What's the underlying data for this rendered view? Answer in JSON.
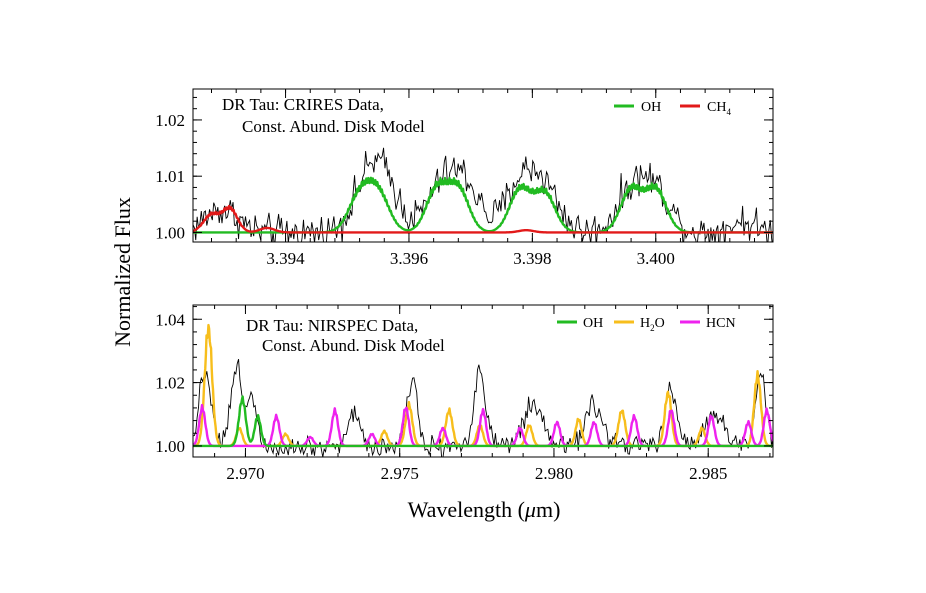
{
  "figure": {
    "ylabel": "Normalized Flux",
    "xlabel_main": "Wavelength (",
    "xlabel_mu": "μ",
    "xlabel_unit": "m)"
  },
  "chart_data": [
    {
      "type": "line",
      "title_line1": "DR Tau: CRIRES Data,",
      "title_line2": "Const. Abund. Disk Model",
      "xlim": [
        3.3925,
        3.4019
      ],
      "ylim": [
        0.9983,
        1.0255
      ],
      "xticks": [
        3.394,
        3.396,
        3.398,
        3.4
      ],
      "xtick_labels": [
        "3.394",
        "3.396",
        "3.398",
        "3.400"
      ],
      "yticks": [
        1.0,
        1.01,
        1.02
      ],
      "ytick_labels": [
        "1.00",
        "1.01",
        "1.02"
      ],
      "legend": [
        {
          "label": "OH",
          "sub": "",
          "color": "#22bb22"
        },
        {
          "label": "CH",
          "sub": "4",
          "color": "#e21a1a"
        }
      ],
      "data_series": {
        "name": "",
        "color": "#000000",
        "x_start": 3.3925,
        "x_end": 3.4019,
        "noise": 0.0022,
        "features": [
          {
            "center": 3.3928,
            "amp": 0.0025,
            "width": 0.0002
          },
          {
            "center": 3.3931,
            "amp": 0.0028,
            "width": 0.0002
          },
          {
            "center": 3.3953,
            "amp": 0.007,
            "width": 0.00024
          },
          {
            "center": 3.3956,
            "amp": 0.0085,
            "width": 0.00024
          },
          {
            "center": 3.3965,
            "amp": 0.0072,
            "width": 0.00024
          },
          {
            "center": 3.3969,
            "amp": 0.0085,
            "width": 0.00024
          },
          {
            "center": 3.3978,
            "amp": 0.0085,
            "width": 0.00024
          },
          {
            "center": 3.3982,
            "amp": 0.0075,
            "width": 0.00024
          },
          {
            "center": 3.3996,
            "amp": 0.007,
            "width": 0.00024
          },
          {
            "center": 3.4,
            "amp": 0.0072,
            "width": 0.00024
          },
          {
            "center": 3.4014,
            "amp": 0.002,
            "width": 0.0002
          }
        ]
      },
      "model_series": [
        {
          "name": "OH",
          "color": "#22bb22",
          "baseline": 1.0,
          "features": [
            {
              "center": 3.3952,
              "amp": 0.0068,
              "width": 0.00018
            },
            {
              "center": 3.3955,
              "amp": 0.0073,
              "width": 0.00018
            },
            {
              "center": 3.39645,
              "amp": 0.0082,
              "width": 0.00017
            },
            {
              "center": 3.3968,
              "amp": 0.0083,
              "width": 0.00017
            },
            {
              "center": 3.3978,
              "amp": 0.0082,
              "width": 0.00017
            },
            {
              "center": 3.3982,
              "amp": 0.0075,
              "width": 0.00017
            },
            {
              "center": 3.3996,
              "amp": 0.0082,
              "width": 0.00017
            },
            {
              "center": 3.4,
              "amp": 0.0082,
              "width": 0.00017
            }
          ]
        },
        {
          "name": "CH4",
          "color": "#e21a1a",
          "baseline": 1.0,
          "features": [
            {
              "center": 3.3928,
              "amp": 0.0034,
              "width": 0.00013
            },
            {
              "center": 3.3931,
              "amp": 0.0045,
              "width": 0.00012
            },
            {
              "center": 3.3937,
              "amp": 0.0008,
              "width": 0.00012
            },
            {
              "center": 3.3979,
              "amp": 0.0004,
              "width": 0.00012
            }
          ]
        }
      ]
    },
    {
      "type": "line",
      "title_line1": "DR Tau: NIRSPEC Data,",
      "title_line2": "Const. Abund. Disk Model",
      "xlim": [
        2.9683,
        2.9871
      ],
      "ylim": [
        0.9965,
        1.0445
      ],
      "xticks": [
        2.97,
        2.975,
        2.98,
        2.985
      ],
      "xtick_labels": [
        "2.970",
        "2.975",
        "2.980",
        "2.985"
      ],
      "yticks": [
        1.0,
        1.02,
        1.04
      ],
      "ytick_labels": [
        "1.00",
        "1.02",
        "1.04"
      ],
      "legend": [
        {
          "label": "OH",
          "sub": "",
          "color": "#22bb22"
        },
        {
          "label": "H",
          "sub": "2",
          "suffix": "O",
          "color": "#f7be1c"
        },
        {
          "label": "HCN",
          "sub": "",
          "color": "#ee22ee"
        }
      ],
      "data_series": {
        "name": "",
        "color": "#000000",
        "x_start": 2.9683,
        "x_end": 2.9871,
        "noise": 0.0025,
        "features": [
          {
            "center": 2.9687,
            "amp": 0.024,
            "width": 0.0002
          },
          {
            "center": 2.9697,
            "amp": 0.024,
            "width": 0.00018
          },
          {
            "center": 2.9702,
            "amp": 0.015,
            "width": 0.00018
          },
          {
            "center": 2.9735,
            "amp": 0.01,
            "width": 0.0002
          },
          {
            "center": 2.9754,
            "amp": 0.021,
            "width": 0.00018
          },
          {
            "center": 2.9776,
            "amp": 0.024,
            "width": 0.00018
          },
          {
            "center": 2.9793,
            "amp": 0.012,
            "width": 0.0003
          },
          {
            "center": 2.9813,
            "amp": 0.012,
            "width": 0.0003
          },
          {
            "center": 2.9838,
            "amp": 0.017,
            "width": 0.0002
          },
          {
            "center": 2.9852,
            "amp": 0.01,
            "width": 0.0003
          },
          {
            "center": 2.9867,
            "amp": 0.022,
            "width": 0.00018
          }
        ]
      },
      "model_series": [
        {
          "name": "H2O",
          "color": "#f7be1c",
          "baseline": 1.0,
          "features": [
            {
              "center": 2.9688,
              "amp": 0.04,
              "width": 0.00012
            },
            {
              "center": 2.9698,
              "amp": 0.006,
              "width": 0.0001
            },
            {
              "center": 2.9713,
              "amp": 0.004,
              "width": 0.0001
            },
            {
              "center": 2.9745,
              "amp": 0.005,
              "width": 0.0001
            },
            {
              "center": 2.9753,
              "amp": 0.014,
              "width": 0.00011
            },
            {
              "center": 2.9766,
              "amp": 0.012,
              "width": 0.00011
            },
            {
              "center": 2.9776,
              "amp": 0.007,
              "width": 0.0001
            },
            {
              "center": 2.9792,
              "amp": 0.007,
              "width": 0.0001
            },
            {
              "center": 2.9808,
              "amp": 0.009,
              "width": 0.0001
            },
            {
              "center": 2.9822,
              "amp": 0.012,
              "width": 0.00011
            },
            {
              "center": 2.9837,
              "amp": 0.018,
              "width": 0.00011
            },
            {
              "center": 2.9848,
              "amp": 0.006,
              "width": 0.0001
            },
            {
              "center": 2.9866,
              "amp": 0.024,
              "width": 0.00011
            }
          ]
        },
        {
          "name": "HCN",
          "color": "#ee22ee",
          "baseline": 1.0,
          "features": [
            {
              "center": 2.9686,
              "amp": 0.013,
              "width": 0.0001
            },
            {
              "center": 2.971,
              "amp": 0.01,
              "width": 0.0001
            },
            {
              "center": 2.9721,
              "amp": 0.003,
              "width": 0.0001
            },
            {
              "center": 2.9729,
              "amp": 0.012,
              "width": 0.0001
            },
            {
              "center": 2.9741,
              "amp": 0.004,
              "width": 0.0001
            },
            {
              "center": 2.9752,
              "amp": 0.013,
              "width": 0.0001
            },
            {
              "center": 2.9764,
              "amp": 0.006,
              "width": 0.0001
            },
            {
              "center": 2.9777,
              "amp": 0.012,
              "width": 0.0001
            },
            {
              "center": 2.9789,
              "amp": 0.006,
              "width": 0.0001
            },
            {
              "center": 2.9801,
              "amp": 0.008,
              "width": 0.0001
            },
            {
              "center": 2.9813,
              "amp": 0.008,
              "width": 0.0001
            },
            {
              "center": 2.9826,
              "amp": 0.01,
              "width": 0.0001
            },
            {
              "center": 2.9838,
              "amp": 0.012,
              "width": 0.0001
            },
            {
              "center": 2.9851,
              "amp": 0.01,
              "width": 0.0001
            },
            {
              "center": 2.9863,
              "amp": 0.008,
              "width": 0.0001
            },
            {
              "center": 2.9869,
              "amp": 0.012,
              "width": 0.0001
            }
          ]
        },
        {
          "name": "OH",
          "color": "#22bb22",
          "baseline": 1.0,
          "features": [
            {
              "center": 2.9699,
              "amp": 0.016,
              "width": 0.00011
            },
            {
              "center": 2.9704,
              "amp": 0.01,
              "width": 0.0001
            }
          ]
        }
      ]
    }
  ]
}
